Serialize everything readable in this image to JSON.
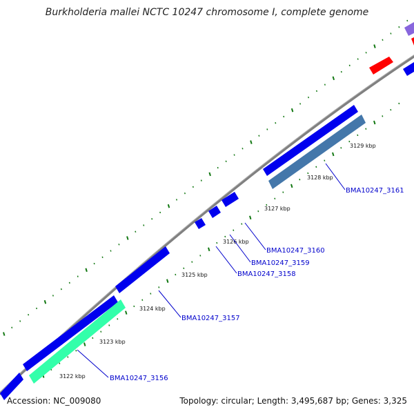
{
  "title": "Burkholderia mallei NCTC 10247 chromosome I, complete genome",
  "footer": {
    "accession": "Accession: NC_009080",
    "topology": "Topology: circular; Length: 3,495,687 bp; Genes: 3,325"
  },
  "ticks": [
    "3122 kbp",
    "3123 kbp",
    "3124 kbp",
    "3125 kbp",
    "3126 kbp",
    "3127 kbp",
    "3128 kbp",
    "3129 kbp"
  ],
  "genes": [
    {
      "name": "BMA10247_3156",
      "color": "#33ffaa"
    },
    {
      "name": "BMA10247_3157",
      "color": "#0000ee"
    },
    {
      "name": "BMA10247_3158",
      "color": "#0000ee"
    },
    {
      "name": "BMA10247_3159",
      "color": "#0000ee"
    },
    {
      "name": "BMA10247_3160",
      "color": "#0000ee"
    },
    {
      "name": "BMA10247_3161",
      "color": "#4477aa"
    }
  ],
  "colors": {
    "backbone": "#808080",
    "cds_forward": "#0000ee",
    "tick": "#117711",
    "rna": "#ff0000",
    "other": "#8866dd"
  }
}
